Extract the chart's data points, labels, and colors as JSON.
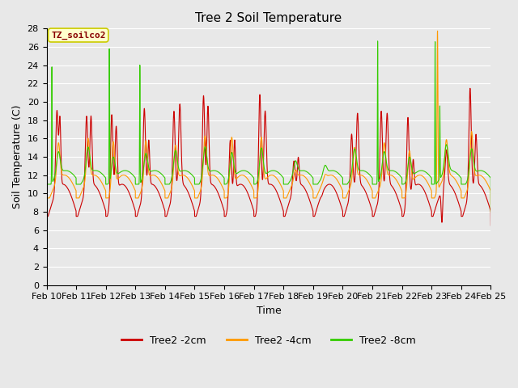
{
  "title": "Tree 2 Soil Temperature",
  "xlabel": "Time",
  "ylabel": "Soil Temperature (C)",
  "ylim": [
    0,
    28
  ],
  "yticks": [
    0,
    2,
    4,
    6,
    8,
    10,
    12,
    14,
    16,
    18,
    20,
    22,
    24,
    26,
    28
  ],
  "x_labels": [
    "Feb 10",
    "Feb 11",
    "Feb 12",
    "Feb 13",
    "Feb 14",
    "Feb 15",
    "Feb 16",
    "Feb 17",
    "Feb 18",
    "Feb 19",
    "Feb 20",
    "Feb 21",
    "Feb 22",
    "Feb 23",
    "Feb 24",
    "Feb 25"
  ],
  "legend_labels": [
    "Tree2 -2cm",
    "Tree2 -4cm",
    "Tree2 -8cm"
  ],
  "line_colors": [
    "#cc0000",
    "#ff9900",
    "#33cc00"
  ],
  "annotation_text": "TZ_soilco2",
  "annotation_bg": "#ffffcc",
  "annotation_border": "#cccc00",
  "bg_color": "#e8e8e8",
  "grid_color": "#ffffff",
  "title_fontsize": 11,
  "axis_fontsize": 9,
  "tick_fontsize": 8
}
